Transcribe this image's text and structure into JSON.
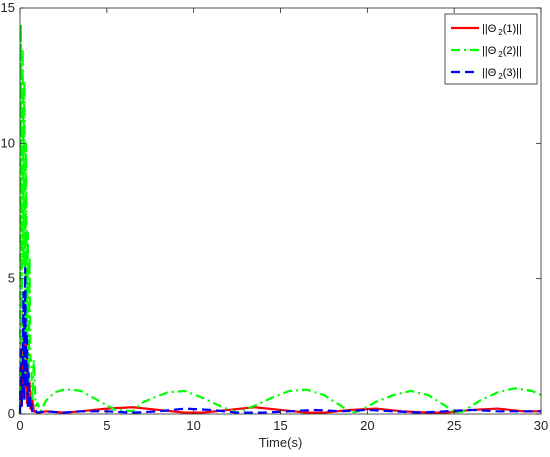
{
  "chart_data": {
    "type": "line",
    "title": "",
    "xlabel": "Time(s)",
    "ylabel": "",
    "xlim": [
      0,
      30
    ],
    "ylim": [
      0,
      15
    ],
    "xticks": [
      "0",
      "5",
      "10",
      "15",
      "20",
      "25",
      "30"
    ],
    "yticks": [
      "0",
      "5",
      "10",
      "15"
    ],
    "grid": false,
    "legend_position": "top-right",
    "series": [
      {
        "name": "||Θ_2(1)||",
        "legend_main": "||Θ",
        "legend_sub": "2",
        "legend_tail": "(1)||",
        "color": "#ff0000",
        "style": "solid",
        "x": [
          0,
          0.05,
          0.1,
          0.15,
          0.2,
          0.25,
          0.3,
          0.35,
          0.4,
          0.45,
          0.5,
          0.55,
          0.6,
          0.7,
          0.8,
          1.0,
          1.5,
          2.5,
          3.5,
          5,
          6.5,
          8,
          9.5,
          10.5,
          12,
          13.5,
          15,
          16.5,
          17.5,
          19,
          20.5,
          22,
          23.5,
          24.5,
          26,
          27.5,
          29,
          30
        ],
        "y": [
          0,
          1.5,
          0.3,
          2.5,
          0.6,
          3.6,
          1.0,
          2.6,
          0.4,
          2.0,
          0.3,
          1.2,
          0.2,
          0.6,
          0.1,
          0.05,
          0.1,
          0.05,
          0.1,
          0.2,
          0.25,
          0.15,
          0.05,
          0.05,
          0.15,
          0.25,
          0.15,
          0.05,
          0.05,
          0.15,
          0.2,
          0.1,
          0.05,
          0.05,
          0.15,
          0.2,
          0.1,
          0.1
        ]
      },
      {
        "name": "||Θ_2(2)||",
        "legend_main": "||Θ",
        "legend_sub": "2",
        "legend_tail": "(2)||",
        "color": "#00ff00",
        "style": "dashdot",
        "x": [
          0,
          0.05,
          0.1,
          0.15,
          0.2,
          0.25,
          0.3,
          0.35,
          0.4,
          0.45,
          0.5,
          0.55,
          0.6,
          0.65,
          0.7,
          0.8,
          0.9,
          1.0,
          1.2,
          1.5,
          2.0,
          2.5,
          3.0,
          3.5,
          4.5,
          5.5,
          6.5,
          7.0,
          7.5,
          8.5,
          9.5,
          10.5,
          11.5,
          12.5,
          13.5,
          14.5,
          15.5,
          16.5,
          17.5,
          18.5,
          19.0,
          19.5,
          20.5,
          21.5,
          22.5,
          23.5,
          24.5,
          25.0,
          25.5,
          26.5,
          27.5,
          28.5,
          29.5,
          30
        ],
        "y": [
          0,
          14.4,
          2.0,
          13.5,
          5.5,
          12.3,
          1.5,
          10.0,
          3.0,
          6.7,
          0.8,
          5.8,
          2.0,
          2.0,
          0.5,
          2.0,
          0.3,
          0.4,
          0.1,
          0.5,
          0.8,
          0.9,
          0.9,
          0.85,
          0.5,
          0.15,
          0.1,
          0.4,
          0.55,
          0.8,
          0.85,
          0.6,
          0.3,
          0.05,
          0.3,
          0.6,
          0.85,
          0.9,
          0.7,
          0.3,
          0.05,
          0.1,
          0.45,
          0.7,
          0.85,
          0.7,
          0.3,
          0.05,
          0.1,
          0.5,
          0.8,
          0.95,
          0.85,
          0.7
        ]
      },
      {
        "name": "||Θ_2(3)||",
        "legend_main": "||Θ",
        "legend_sub": "2",
        "legend_tail": "(3)||",
        "color": "#0000ff",
        "style": "dashed",
        "x": [
          0,
          0.05,
          0.1,
          0.15,
          0.2,
          0.25,
          0.3,
          0.35,
          0.4,
          0.45,
          0.5,
          0.55,
          0.6,
          0.7,
          0.8,
          1.0,
          1.5,
          2.5,
          3.5,
          5,
          6.5,
          8,
          9.5,
          11,
          12.5,
          14,
          15.5,
          17,
          18.5,
          20,
          21.5,
          23,
          24.5,
          26,
          27.5,
          29,
          30
        ],
        "y": [
          0,
          2.5,
          0.3,
          1.2,
          4.5,
          0.5,
          5.4,
          1.0,
          3.0,
          0.3,
          1.5,
          0.2,
          0.6,
          0.1,
          0.2,
          0.05,
          0.1,
          0.05,
          0.1,
          0.1,
          0.05,
          0.1,
          0.2,
          0.15,
          0.05,
          0.05,
          0.1,
          0.15,
          0.1,
          0.15,
          0.1,
          0.05,
          0.1,
          0.15,
          0.1,
          0.1,
          0.1
        ]
      }
    ]
  }
}
